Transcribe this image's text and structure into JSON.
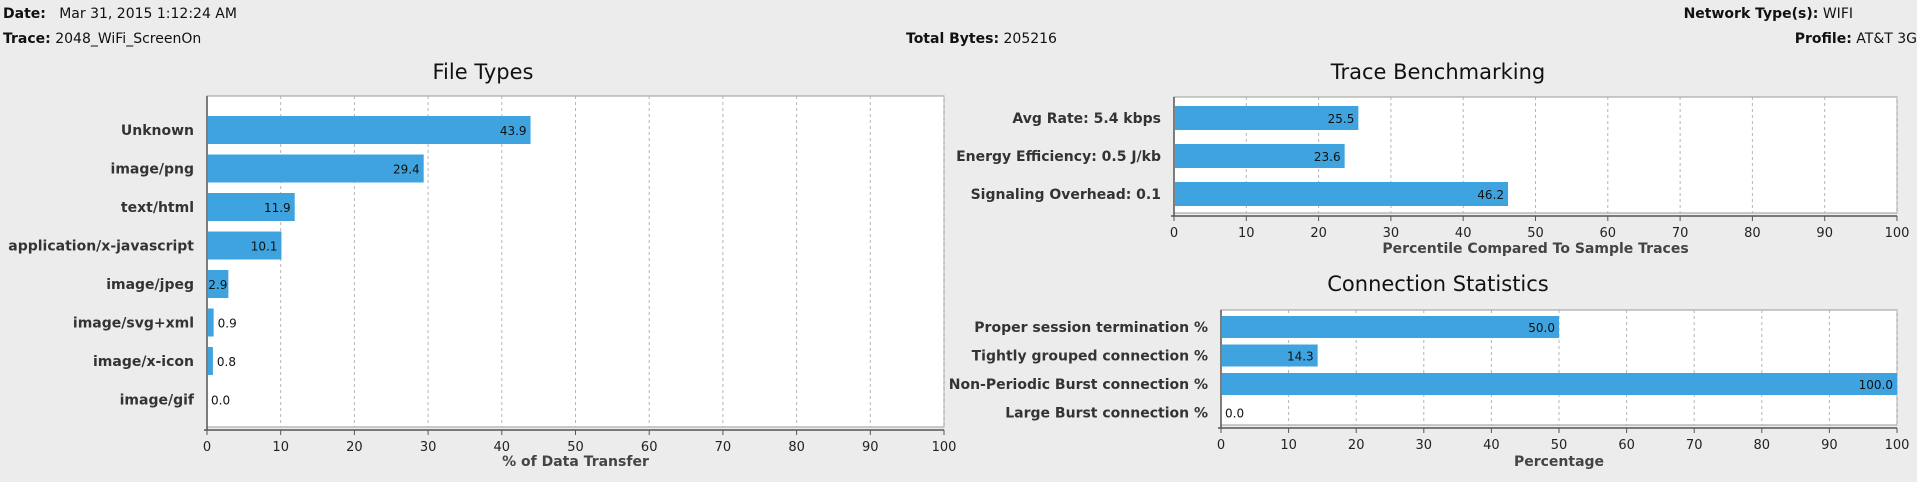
{
  "header": {
    "date_label": "Date:",
    "date_value": "Mar 31, 2015 1:12:24 AM",
    "trace_label": "Trace:",
    "trace_value": "2048_WiFi_ScreenOn",
    "total_bytes_label": "Total Bytes:",
    "total_bytes_value": "205216",
    "network_type_label": "Network Type(s):",
    "network_type_value": "WIFI",
    "profile_label": "Profile:",
    "profile_value": "AT&T 3G"
  },
  "colors": {
    "bar": "#3fa3e0",
    "grid": "#b5b5b5"
  },
  "chart_data": [
    {
      "type": "bar",
      "orientation": "horizontal",
      "title": "File Types",
      "xlabel": "% of Data Transfer",
      "xlim": [
        0,
        100
      ],
      "ticks": [
        0,
        10,
        20,
        30,
        40,
        50,
        60,
        70,
        80,
        90,
        100
      ],
      "categories": [
        "Unknown",
        "image/png",
        "text/html",
        "application/x-javascript",
        "image/jpeg",
        "image/svg+xml",
        "image/x-icon",
        "image/gif"
      ],
      "values": [
        43.9,
        29.4,
        11.9,
        10.1,
        2.9,
        0.9,
        0.8,
        0.0
      ],
      "value_labels": [
        "43.9",
        "29.4",
        "11.9",
        "10.1",
        "2.9",
        "0.9",
        "0.8",
        "0.0"
      ]
    },
    {
      "type": "bar",
      "orientation": "horizontal",
      "title": "Trace Benchmarking",
      "xlabel": "Percentile Compared To Sample Traces",
      "xlim": [
        0,
        100
      ],
      "ticks": [
        0,
        10,
        20,
        30,
        40,
        50,
        60,
        70,
        80,
        90,
        100
      ],
      "categories": [
        "Avg Rate: 5.4 kbps",
        "Energy Efficiency: 0.5 J/kb",
        "Signaling Overhead: 0.1"
      ],
      "values": [
        25.5,
        23.6,
        46.2
      ],
      "value_labels": [
        "25.5",
        "23.6",
        "46.2"
      ]
    },
    {
      "type": "bar",
      "orientation": "horizontal",
      "title": "Connection Statistics",
      "xlabel": "Percentage",
      "xlim": [
        0,
        100
      ],
      "ticks": [
        0,
        10,
        20,
        30,
        40,
        50,
        60,
        70,
        80,
        90,
        100
      ],
      "categories": [
        "Proper session termination %",
        "Tightly grouped connection %",
        "Non-Periodic Burst connection %",
        "Large Burst connection %"
      ],
      "values": [
        50.0,
        14.3,
        100.0,
        0.0
      ],
      "value_labels": [
        "50.0",
        "14.3",
        "100.0",
        "0.0"
      ]
    }
  ]
}
